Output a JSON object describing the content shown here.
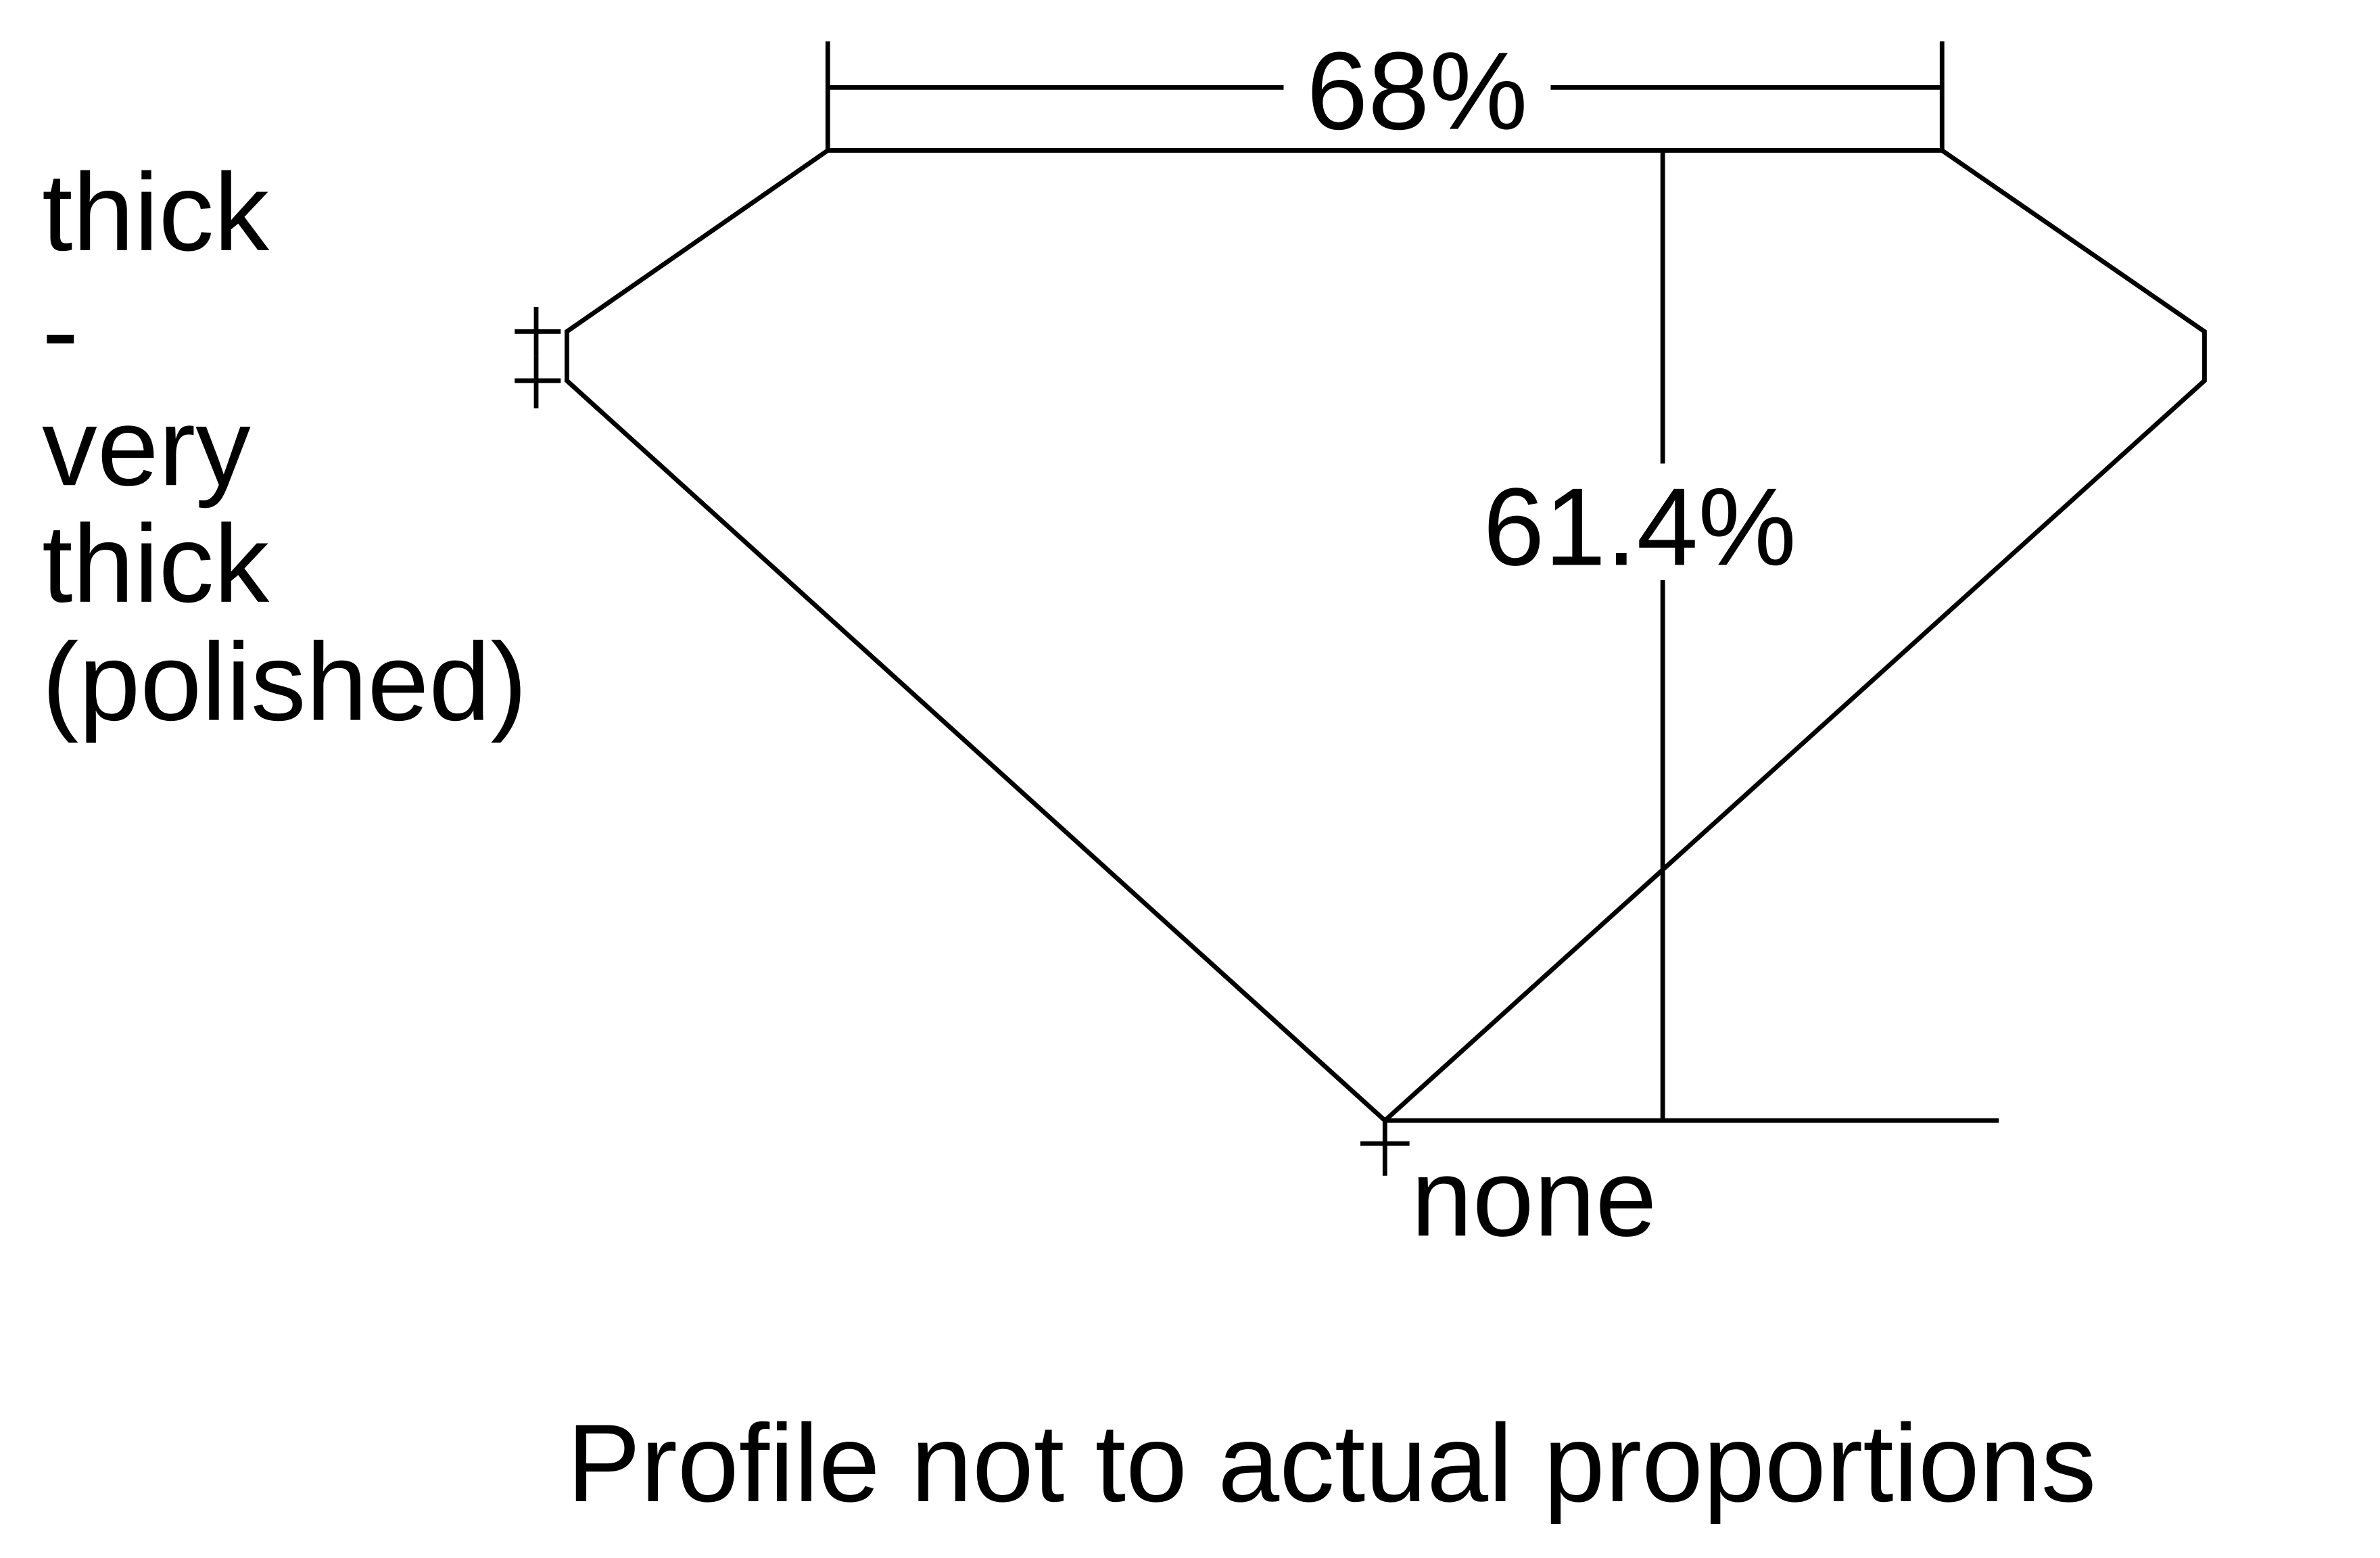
{
  "diagram": {
    "table_percent": "68%",
    "depth_percent": "61.4%",
    "girdle_label_lines": [
      "thick",
      "-",
      "very",
      "thick",
      "(polished)"
    ],
    "culet_label": "none",
    "footnote": "Profile not to actual proportions",
    "line_color": "#000000",
    "background_color": "#ffffff"
  }
}
